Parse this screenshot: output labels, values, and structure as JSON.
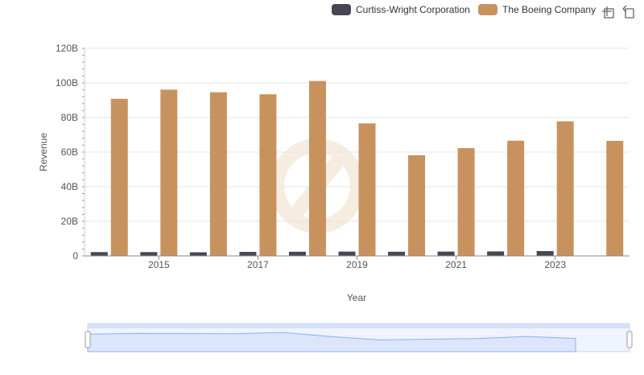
{
  "colors": {
    "series_cw": "#474752",
    "series_boeing": "#c8925e",
    "grid": "#e6e6e6",
    "axis_text": "#555555",
    "zoom_fill": "#dbe6fb",
    "zoom_line": "#8fb0ee"
  },
  "icons": {
    "zoom": "zoom-select-icon",
    "reset": "zoom-reset-icon"
  },
  "chart_data": {
    "type": "bar",
    "xlabel": "Year",
    "ylabel": "Revenue",
    "ylim": [
      0,
      120
    ],
    "y_unit": "B",
    "y_ticks": [
      "0",
      "20B",
      "40B",
      "60B",
      "80B",
      "100B",
      "120B"
    ],
    "x_tick_labels": [
      "2015",
      "2017",
      "2019",
      "2021",
      "2023"
    ],
    "categories": [
      "2014",
      "2015",
      "2016",
      "2017",
      "2018",
      "2019",
      "2020",
      "2021",
      "2022",
      "2023",
      "2024"
    ],
    "legend_position": "top-right",
    "series": [
      {
        "name": "Curtiss-Wright Corporation",
        "color": "#474752",
        "values": [
          2.2,
          2.2,
          2.1,
          2.3,
          2.4,
          2.5,
          2.4,
          2.5,
          2.6,
          2.8,
          null
        ]
      },
      {
        "name": "The Boeing Company",
        "color": "#c8925e",
        "values": [
          90.8,
          96.1,
          94.6,
          93.4,
          101.1,
          76.6,
          58.2,
          62.3,
          66.6,
          77.8,
          66.5
        ]
      }
    ]
  }
}
